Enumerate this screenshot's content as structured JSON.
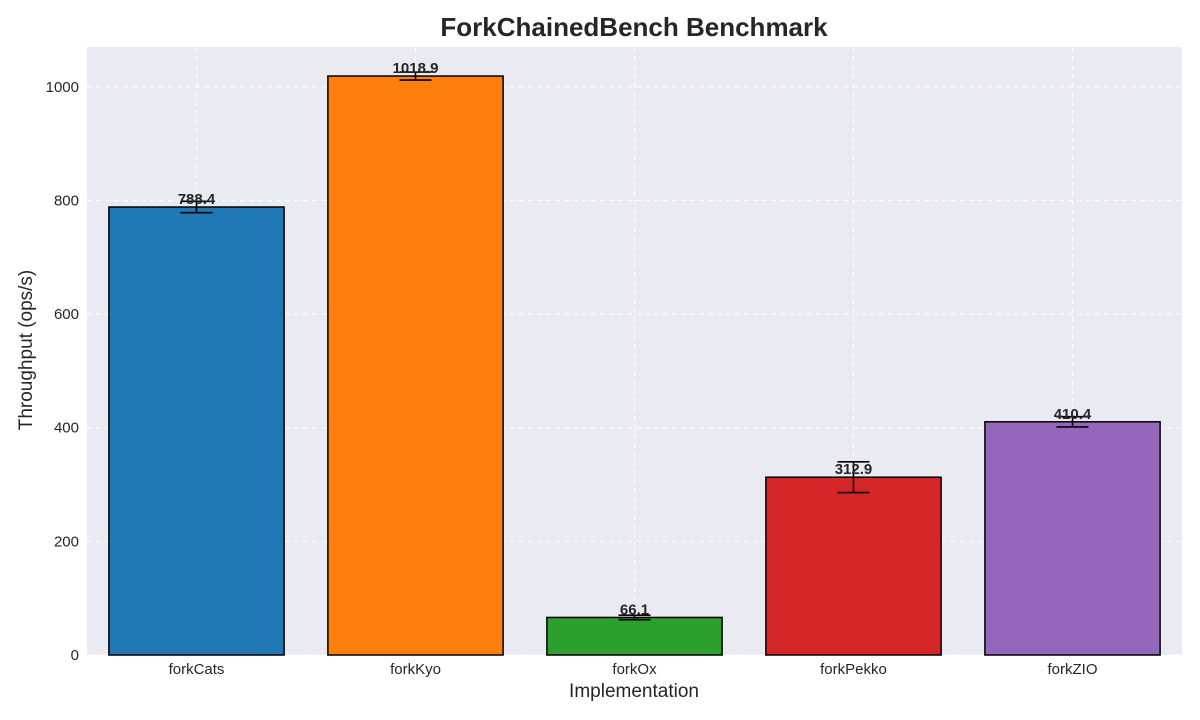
{
  "chart_data": {
    "type": "bar",
    "title": "ForkChainedBench Benchmark",
    "xlabel": "Implementation",
    "ylabel": "Throughput (ops/s)",
    "categories": [
      "forkCats",
      "forkKyo",
      "forkOx",
      "forkPekko",
      "forkZIO"
    ],
    "values": [
      788.4,
      1018.9,
      66.1,
      312.9,
      410.4
    ],
    "value_labels": [
      "788.4",
      "1018.9",
      "66.1",
      "312.9",
      "410.4"
    ],
    "error": [
      10,
      7,
      4,
      27,
      9
    ],
    "colors": [
      "#1f77b4",
      "#ff7f0e",
      "#2ca02c",
      "#d62728",
      "#9467bd"
    ],
    "ylim": [
      0,
      1070
    ],
    "yticks": [
      0,
      200,
      400,
      600,
      800,
      1000
    ],
    "ytick_labels": [
      "0",
      "200",
      "400",
      "600",
      "800",
      "1000"
    ],
    "grid": true,
    "background": "#eaeaf2",
    "grid_color": "#ffffff"
  }
}
